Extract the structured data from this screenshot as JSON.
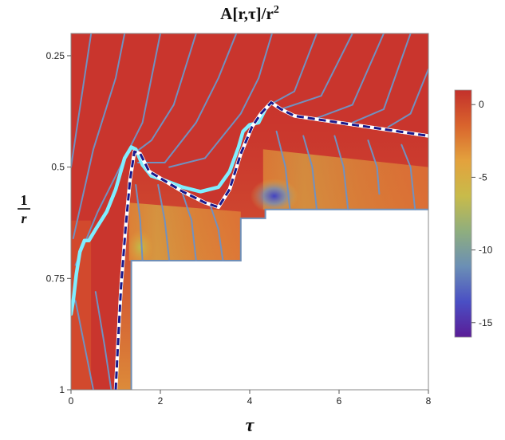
{
  "chart_data": {
    "type": "heatmap",
    "title": "A[r,τ]/r²",
    "title_main": "A[r,τ]/r",
    "title_power": "2",
    "xlabel": "τ",
    "ylabel_numerator": "1",
    "ylabel_denominator": "r",
    "xlim": [
      0,
      8
    ],
    "ylim": [
      1,
      0.2
    ],
    "x_ticks": [
      0,
      2,
      4,
      6,
      8
    ],
    "x_tick_labels": [
      "0",
      "2",
      "4",
      "6",
      "8"
    ],
    "y_ticks": [
      0.25,
      0.5,
      0.75,
      1
    ],
    "y_tick_labels": [
      "0.25",
      "0.5",
      "0.75",
      "1"
    ],
    "colorbar": {
      "range": [
        -16,
        1
      ],
      "ticks": [
        0,
        -5,
        -10,
        -15
      ],
      "tick_labels": [
        "0",
        "-5",
        "-10",
        "-15"
      ],
      "colors": [
        "#c3302b",
        "#d9642d",
        "#e3a23d",
        "#c8bb4a",
        "#8fae7e",
        "#6b8fb5",
        "#4a4fc4",
        "#5a1c96"
      ]
    },
    "excluded_region_boundary": [
      [
        1.35,
        1.0
      ],
      [
        1.35,
        0.71
      ],
      [
        3.8,
        0.71
      ],
      [
        3.8,
        0.615
      ],
      [
        4.35,
        0.615
      ],
      [
        4.35,
        0.595
      ],
      [
        8.0,
        0.595
      ]
    ],
    "series": [
      {
        "style": "solid",
        "color": "#7feeff",
        "points": [
          [
            0,
            0.83
          ],
          [
            0.05,
            0.8
          ],
          [
            0.12,
            0.74
          ],
          [
            0.2,
            0.69
          ],
          [
            0.3,
            0.665
          ],
          [
            0.4,
            0.665
          ],
          [
            0.55,
            0.64
          ],
          [
            0.8,
            0.6
          ],
          [
            1.0,
            0.55
          ],
          [
            1.2,
            0.48
          ],
          [
            1.35,
            0.455
          ],
          [
            1.45,
            0.46
          ],
          [
            1.6,
            0.495
          ],
          [
            1.8,
            0.52
          ],
          [
            2.1,
            0.53
          ],
          [
            2.5,
            0.545
          ],
          [
            2.9,
            0.555
          ],
          [
            3.3,
            0.545
          ],
          [
            3.55,
            0.51
          ],
          [
            3.75,
            0.455
          ],
          [
            3.85,
            0.42
          ],
          [
            4.0,
            0.405
          ],
          [
            4.2,
            0.4
          ],
          [
            4.35,
            0.37
          ],
          [
            4.48,
            0.355
          ]
        ]
      },
      {
        "style": "dashed",
        "color": "#1a1a8c",
        "points": [
          [
            1.0,
            1.0
          ],
          [
            1.05,
            0.9
          ],
          [
            1.12,
            0.77
          ],
          [
            1.22,
            0.64
          ],
          [
            1.32,
            0.53
          ],
          [
            1.42,
            0.465
          ],
          [
            1.55,
            0.47
          ],
          [
            1.75,
            0.51
          ],
          [
            2.0,
            0.525
          ],
          [
            2.5,
            0.555
          ],
          [
            3.0,
            0.58
          ],
          [
            3.3,
            0.59
          ],
          [
            3.55,
            0.55
          ],
          [
            3.8,
            0.47
          ],
          [
            4.05,
            0.41
          ],
          [
            4.25,
            0.38
          ],
          [
            4.48,
            0.355
          ],
          [
            4.7,
            0.37
          ],
          [
            5.0,
            0.385
          ],
          [
            6.0,
            0.4
          ],
          [
            7.0,
            0.415
          ],
          [
            8.0,
            0.43
          ]
        ]
      }
    ],
    "streamlines": [
      [
        [
          0.0,
          0.5
        ],
        [
          0.15,
          0.4
        ],
        [
          0.45,
          0.2
        ]
      ],
      [
        [
          0.05,
          0.66
        ],
        [
          0.5,
          0.46
        ],
        [
          1.0,
          0.3
        ],
        [
          1.2,
          0.2
        ]
      ],
      [
        [
          0.1,
          0.72
        ],
        [
          0.6,
          0.6
        ],
        [
          1.2,
          0.48
        ],
        [
          1.6,
          0.4
        ],
        [
          2.0,
          0.2
        ]
      ],
      [
        [
          1.4,
          0.47
        ],
        [
          1.8,
          0.44
        ],
        [
          2.3,
          0.36
        ],
        [
          2.8,
          0.2
        ]
      ],
      [
        [
          1.5,
          0.49
        ],
        [
          2.1,
          0.49
        ],
        [
          2.8,
          0.4
        ],
        [
          3.3,
          0.3
        ],
        [
          3.7,
          0.2
        ]
      ],
      [
        [
          2.2,
          0.5
        ],
        [
          3.0,
          0.48
        ],
        [
          3.8,
          0.38
        ],
        [
          4.2,
          0.3
        ],
        [
          4.5,
          0.2
        ]
      ],
      [
        [
          4.45,
          0.36
        ],
        [
          5.0,
          0.33
        ],
        [
          5.5,
          0.2
        ]
      ],
      [
        [
          4.7,
          0.37
        ],
        [
          5.6,
          0.34
        ],
        [
          6.3,
          0.2
        ]
      ],
      [
        [
          5.5,
          0.39
        ],
        [
          6.3,
          0.36
        ],
        [
          7.0,
          0.2
        ]
      ],
      [
        [
          6.3,
          0.4
        ],
        [
          7.0,
          0.37
        ],
        [
          7.6,
          0.2
        ]
      ],
      [
        [
          7.1,
          0.41
        ],
        [
          7.6,
          0.38
        ],
        [
          8.0,
          0.28
        ]
      ],
      [
        [
          0.5,
          1.0
        ],
        [
          0.3,
          0.9
        ],
        [
          0.1,
          0.8
        ]
      ],
      [
        [
          0.9,
          1.0
        ],
        [
          0.75,
          0.9
        ],
        [
          0.55,
          0.78
        ]
      ],
      [
        [
          1.6,
          0.71
        ],
        [
          1.55,
          0.62
        ],
        [
          1.45,
          0.54
        ]
      ],
      [
        [
          2.2,
          0.71
        ],
        [
          2.1,
          0.62
        ],
        [
          1.95,
          0.54
        ]
      ],
      [
        [
          2.8,
          0.71
        ],
        [
          2.7,
          0.62
        ],
        [
          2.5,
          0.56
        ]
      ],
      [
        [
          3.4,
          0.71
        ],
        [
          3.3,
          0.64
        ],
        [
          3.1,
          0.58
        ]
      ],
      [
        [
          4.9,
          0.595
        ],
        [
          4.8,
          0.5
        ],
        [
          4.6,
          0.42
        ]
      ],
      [
        [
          5.5,
          0.595
        ],
        [
          5.4,
          0.5
        ],
        [
          5.2,
          0.43
        ]
      ],
      [
        [
          6.2,
          0.595
        ],
        [
          6.1,
          0.5
        ],
        [
          5.9,
          0.43
        ]
      ],
      [
        [
          6.9,
          0.56
        ],
        [
          6.85,
          0.5
        ],
        [
          6.65,
          0.44
        ]
      ],
      [
        [
          7.7,
          0.595
        ],
        [
          7.6,
          0.5
        ],
        [
          7.4,
          0.45
        ]
      ]
    ]
  }
}
